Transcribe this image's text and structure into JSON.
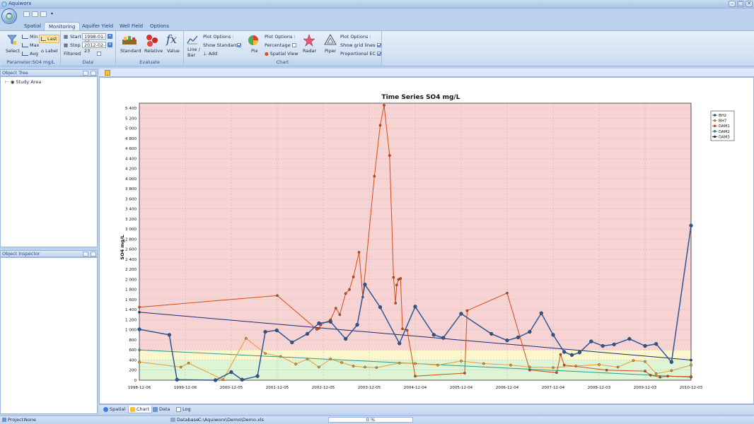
{
  "window": {
    "title": "Aquiworx",
    "buttons": [
      "–",
      "□",
      "✕"
    ]
  },
  "tabs": [
    {
      "label": "Spatial",
      "active": false
    },
    {
      "label": "Monitoring",
      "active": true
    },
    {
      "label": "Aquifer Yield",
      "active": false
    },
    {
      "label": "Well Field",
      "active": false
    },
    {
      "label": "Options",
      "active": false
    }
  ],
  "ribbon": {
    "parameter": {
      "select_label": "Select",
      "min_label": "Min",
      "max_label": "Max",
      "avg_label": "Avg",
      "last_label": "Last",
      "label_label": "Label",
      "group_label": "Parameter:SO4 mg/L"
    },
    "date": {
      "start_label": "Start",
      "start_value": "1998-01-26",
      "stop_label": "Stop",
      "stop_value": "2012-02-23",
      "filtered_label": "Filtered",
      "group_label": "Date"
    },
    "evaluate": {
      "standard_label": "Standard",
      "relative_label": "Relative",
      "value_label": "Value",
      "group_label": "Evaluate"
    },
    "chart": {
      "line_bar_label": "Line / Bar",
      "plot_options_1": "Plot Options :",
      "show_standard_label": "Show Standard",
      "add_label": "Add",
      "pie_label": "Pie",
      "plot_options_2": "Plot Options :",
      "percentage_label": "Percentage",
      "spatial_view_label": "Spatial View",
      "radar_label": "Radar",
      "piper_label": "Piper",
      "plot_options_3": "Plot Options :",
      "show_grid_label": "Show grid lines",
      "proportional_ec_label": "Proportional EC",
      "group_label": "Chart"
    }
  },
  "panels": {
    "object_tree": {
      "title": "Object Tree",
      "root_item": "Study Area"
    },
    "object_inspector": {
      "title": "Object Inspector"
    }
  },
  "bottom_tabs": [
    {
      "label": "Spatial",
      "active": false
    },
    {
      "label": "Chart",
      "active": true
    },
    {
      "label": "Data",
      "active": false
    },
    {
      "label": "Log",
      "active": false
    }
  ],
  "status": {
    "project_label": "Project:",
    "project_value": "None",
    "database_label": "Database",
    "database_value": "C:\\Aquiworx\\Demo\\Demo.xls",
    "progress": "0 %"
  },
  "colors": {
    "bh2": "#2f5597",
    "bh7": "#ed9a2e",
    "dam1": "#d84a14",
    "dam2": "#2a9a96",
    "dam3": "#1e2a6e",
    "zone_red": "#f7d3d3",
    "zone_yellow": "#fbf6cc",
    "zone_green": "#ddf5d4"
  },
  "chart_data": {
    "type": "line",
    "title": "Time Series SO4 mg/L",
    "ylabel": "SO4 mg/L",
    "xlabel": "",
    "xlim": [
      "1998-12-06",
      "2010-12-03"
    ],
    "ylim": [
      0,
      5500
    ],
    "x_ticks": [
      "1998-12-06",
      "1999-12-06",
      "2000-12-05",
      "2001-12-05",
      "2002-12-05",
      "2003-12-05",
      "2004-12-04",
      "2005-12-04",
      "2006-12-04",
      "2007-12-04",
      "2008-12-03",
      "2009-12-03",
      "2010-12-03"
    ],
    "y_ticks": [
      "0",
      "200",
      "400",
      "600",
      "800",
      "1 000",
      "1 200",
      "1 400",
      "1 600",
      "1 800",
      "2 000",
      "2 200",
      "2 400",
      "2 600",
      "2 800",
      "3 000",
      "3 200",
      "3 400",
      "3 600",
      "3 800",
      "4 000",
      "4 200",
      "4 400",
      "4 600",
      "4 800",
      "5 000",
      "5 200",
      "5 400"
    ],
    "grid": true,
    "legend_position": "top-right",
    "zones": [
      {
        "from": 0,
        "to": 400,
        "color": "green"
      },
      {
        "from": 400,
        "to": 600,
        "color": "yellow"
      },
      {
        "from": 600,
        "to": 5500,
        "color": "red"
      }
    ],
    "series": [
      {
        "name": "BH2",
        "color_key": "bh2",
        "points": [
          [
            "1998-12-06",
            1010
          ],
          [
            "1999-08-01",
            900
          ],
          [
            "1999-10-01",
            10
          ],
          [
            "2000-08-01",
            0
          ],
          [
            "2000-12-05",
            160
          ],
          [
            "2001-03-01",
            10
          ],
          [
            "2001-07-01",
            80
          ],
          [
            "2001-09-01",
            960
          ],
          [
            "2001-12-01",
            990
          ],
          [
            "2002-04-01",
            750
          ],
          [
            "2002-08-01",
            920
          ],
          [
            "2002-11-01",
            1130
          ],
          [
            "2003-02-01",
            1160
          ],
          [
            "2003-06-01",
            820
          ],
          [
            "2003-09-01",
            1100
          ],
          [
            "2003-11-01",
            1900
          ],
          [
            "2004-03-01",
            1450
          ],
          [
            "2004-08-01",
            730
          ],
          [
            "2004-12-04",
            1460
          ],
          [
            "2005-05-01",
            900
          ],
          [
            "2005-07-15",
            840
          ],
          [
            "2005-12-04",
            1320
          ],
          [
            "2006-08-01",
            920
          ],
          [
            "2006-12-04",
            790
          ],
          [
            "2007-03-01",
            850
          ],
          [
            "2007-06-01",
            960
          ],
          [
            "2007-09-01",
            1330
          ],
          [
            "2007-12-04",
            900
          ],
          [
            "2008-03-01",
            560
          ],
          [
            "2008-05-01",
            500
          ],
          [
            "2008-07-01",
            550
          ],
          [
            "2008-10-01",
            770
          ],
          [
            "2009-01-01",
            680
          ],
          [
            "2009-04-01",
            710
          ],
          [
            "2009-08-01",
            820
          ],
          [
            "2009-12-03",
            680
          ],
          [
            "2010-03-01",
            720
          ],
          [
            "2010-07-01",
            360
          ],
          [
            "2010-12-03",
            3070
          ]
        ]
      },
      {
        "name": "BH7",
        "color_key": "bh7",
        "points": [
          [
            "1998-12-06",
            360
          ],
          [
            "1999-11-01",
            260
          ],
          [
            "2000-01-01",
            340
          ],
          [
            "2000-10-01",
            10
          ],
          [
            "2001-04-01",
            830
          ],
          [
            "2001-09-01",
            530
          ],
          [
            "2002-01-01",
            470
          ],
          [
            "2002-05-01",
            320
          ],
          [
            "2002-08-01",
            420
          ],
          [
            "2002-11-01",
            260
          ],
          [
            "2003-02-01",
            420
          ],
          [
            "2003-05-01",
            350
          ],
          [
            "2003-08-01",
            280
          ],
          [
            "2003-11-01",
            260
          ],
          [
            "2004-02-01",
            250
          ],
          [
            "2004-08-01",
            340
          ],
          [
            "2004-12-04",
            330
          ],
          [
            "2005-06-01",
            300
          ],
          [
            "2005-12-04",
            380
          ],
          [
            "2006-06-01",
            330
          ],
          [
            "2007-01-01",
            300
          ],
          [
            "2007-06-01",
            260
          ],
          [
            "2007-12-04",
            250
          ],
          [
            "2008-06-01",
            280
          ],
          [
            "2008-12-03",
            310
          ],
          [
            "2009-05-01",
            260
          ],
          [
            "2009-09-01",
            390
          ],
          [
            "2009-12-03",
            370
          ],
          [
            "2010-03-01",
            130
          ],
          [
            "2010-07-01",
            190
          ],
          [
            "2010-12-03",
            300
          ]
        ]
      },
      {
        "name": "DAM1",
        "color_key": "dam1",
        "points": [
          [
            "1998-12-06",
            1450
          ],
          [
            "2001-12-05",
            1680
          ],
          [
            "2002-10-15",
            1010
          ],
          [
            "2002-11-01",
            1030
          ],
          [
            "2002-11-15",
            1100
          ],
          [
            "2003-02-01",
            1200
          ],
          [
            "2003-03-15",
            1430
          ],
          [
            "2003-04-15",
            1300
          ],
          [
            "2003-06-01",
            1720
          ],
          [
            "2003-07-01",
            1800
          ],
          [
            "2003-08-01",
            2050
          ],
          [
            "2003-09-15",
            2540
          ],
          [
            "2003-10-15",
            1650
          ],
          [
            "2004-01-15",
            4050
          ],
          [
            "2004-03-01",
            5060
          ],
          [
            "2004-04-01",
            5460
          ],
          [
            "2004-05-15",
            4460
          ],
          [
            "2004-06-15",
            2040
          ],
          [
            "2004-07-01",
            1530
          ],
          [
            "2004-07-10",
            1890
          ],
          [
            "2004-07-25",
            2000
          ],
          [
            "2004-08-10",
            2020
          ],
          [
            "2004-08-25",
            1020
          ],
          [
            "2004-10-01",
            990
          ],
          [
            "2004-12-04",
            80
          ],
          [
            "2006-01-01",
            140
          ],
          [
            "2006-01-20",
            1380
          ],
          [
            "2006-12-04",
            1730
          ],
          [
            "2007-06-01",
            200
          ],
          [
            "2008-01-01",
            150
          ],
          [
            "2008-02-01",
            510
          ],
          [
            "2008-03-01",
            300
          ],
          [
            "2009-02-01",
            200
          ],
          [
            "2009-12-03",
            180
          ],
          [
            "2010-01-15",
            100
          ],
          [
            "2010-04-01",
            60
          ],
          [
            "2010-06-01",
            80
          ],
          [
            "2010-12-03",
            70
          ]
        ]
      },
      {
        "name": "DAM2",
        "color_key": "dam2",
        "points": [
          [
            "1998-12-06",
            600
          ],
          [
            "2010-12-03",
            60
          ]
        ]
      },
      {
        "name": "DAM3",
        "color_key": "dam3",
        "points": [
          [
            "1998-12-06",
            1350
          ],
          [
            "2010-12-03",
            400
          ]
        ]
      }
    ]
  }
}
